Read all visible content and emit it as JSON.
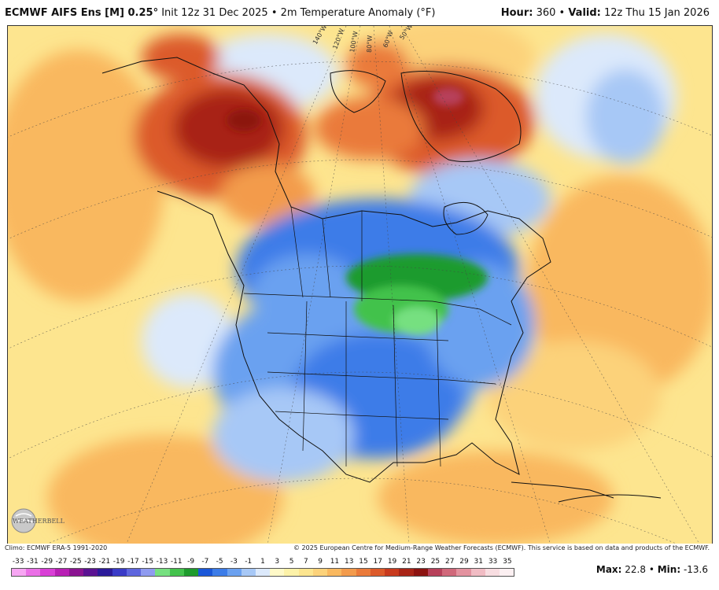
{
  "header": {
    "model": "ECMWF AIFS Ens [M] 0.25",
    "deg": "°",
    "init": " Init 12z 31 Dec 2025 • 2m Temperature Anomaly (°F)",
    "hour_label": "Hour:",
    "hour_value": " 360 • ",
    "valid_label": "Valid:",
    "valid_value": " 12z Thu 15 Jan 2026"
  },
  "map": {
    "longitude_labels": [
      "140°W",
      "120°W",
      "100°W",
      "80°W",
      "60°W",
      "50°W"
    ],
    "logo_text": "WEATHERBELL"
  },
  "footer": {
    "climo": "Climo: ECMWF ERA-5 1991-2020",
    "copyright": "© 2025 European Centre for Medium-Range Weather Forecasts (ECMWF). This service is based on data and products of the ECMWF.",
    "max_label": "Max:",
    "max_value": " 22.8 • ",
    "min_label": "Min:",
    "min_value": " -13.6"
  },
  "legend": {
    "labels": [
      "-33",
      "-31",
      "-29",
      "-27",
      "-25",
      "-23",
      "-21",
      "-19",
      "-17",
      "-15",
      "-13",
      "-11",
      "-9",
      "-7",
      "-5",
      "-3",
      "-1",
      "1",
      "3",
      "5",
      "7",
      "9",
      "11",
      "13",
      "15",
      "17",
      "19",
      "21",
      "23",
      "25",
      "27",
      "29",
      "31",
      "33",
      "35"
    ],
    "colors": [
      "#f7a6f3",
      "#ea6fe6",
      "#d93fd6",
      "#b81fb4",
      "#8a1391",
      "#5a1292",
      "#2b1a9a",
      "#3a3bc7",
      "#5e66de",
      "#8f9bf0",
      "#76e080",
      "#43c24c",
      "#1e9b2d",
      "#1a57d8",
      "#3c7ce8",
      "#6ba1f0",
      "#a7c8f6",
      "#dce9fb",
      "#fff9c8",
      "#fdf2a8",
      "#fde58f",
      "#fcd27a",
      "#f9b85f",
      "#f39b4c",
      "#ea7a3a",
      "#dc5a2a",
      "#c83a1e",
      "#a82416",
      "#8c1310",
      "#b7405a",
      "#d0687a",
      "#e3929f",
      "#f1bcc4",
      "#f8dde1",
      "#fcf0f2"
    ]
  }
}
